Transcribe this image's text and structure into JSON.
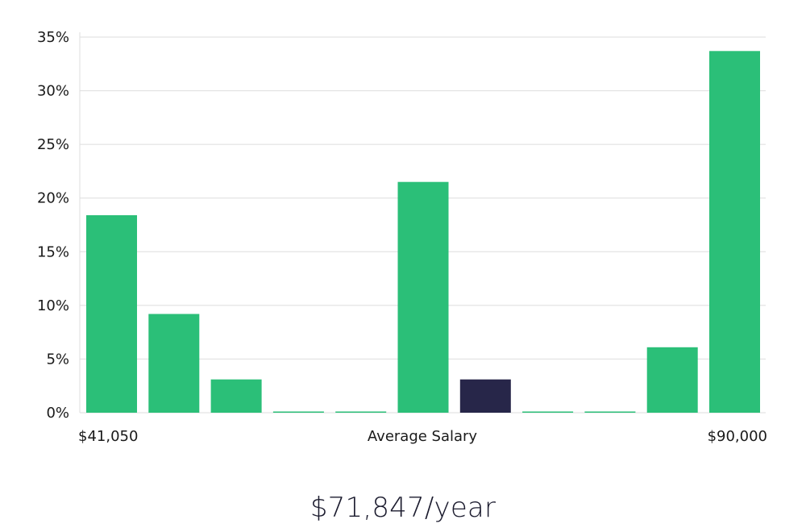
{
  "chart_data": {
    "type": "bar",
    "title": "",
    "xlabel": "",
    "ylabel": "",
    "ylim": [
      0,
      35
    ],
    "yticks": [
      "0%",
      "5%",
      "10%",
      "15%",
      "20%",
      "25%",
      "30%",
      "35%"
    ],
    "x_labels": {
      "left": "$41,050",
      "center": "Average Salary",
      "right": "$90,000"
    },
    "values": [
      18.4,
      9.2,
      3.1,
      0.1,
      0.1,
      21.5,
      3.1,
      0.1,
      0.1,
      6.1,
      33.7
    ],
    "highlight_index": 6,
    "colors": {
      "bar": "#2bbf78",
      "highlight": "#272649",
      "grid": "#dddddd"
    },
    "grid": true
  },
  "summary": {
    "salary": "$71,847/year"
  }
}
